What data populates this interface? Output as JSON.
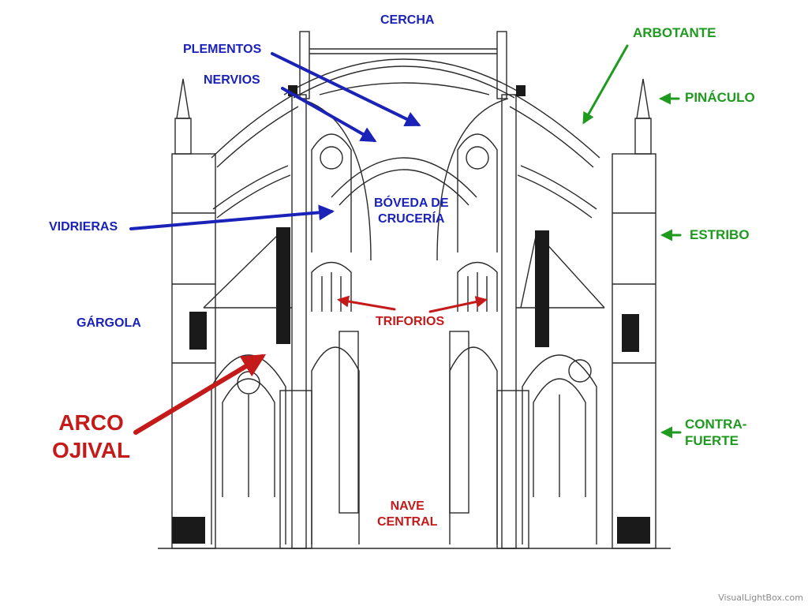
{
  "labels": {
    "cercha": "CERCHA",
    "plementos": "PLEMENTOS",
    "nervios": "NERVIOS",
    "boveda": "BÓVEDA DE\nCRUCERÍA",
    "vidrieras": "VIDRIERAS",
    "gargola": "GÁRGOLA",
    "triforios": "TRIFORIOS",
    "arco_ojival": "ARCO\nOJIVAL",
    "nave_central": "NAVE\nCENTRAL",
    "arbotante": "ARBOTANTE",
    "pinaculo": "PINÁCULO",
    "estribo": "ESTRIBO",
    "contrafuerte": "CONTRA-\nFUERTE"
  },
  "watermark": "VisualLightBox.com",
  "colors": {
    "blue_labels": "#1a22b8",
    "red_labels": "#c41a1a",
    "green_labels": "#1e9a1e",
    "drawing": "#2a2a2a"
  }
}
